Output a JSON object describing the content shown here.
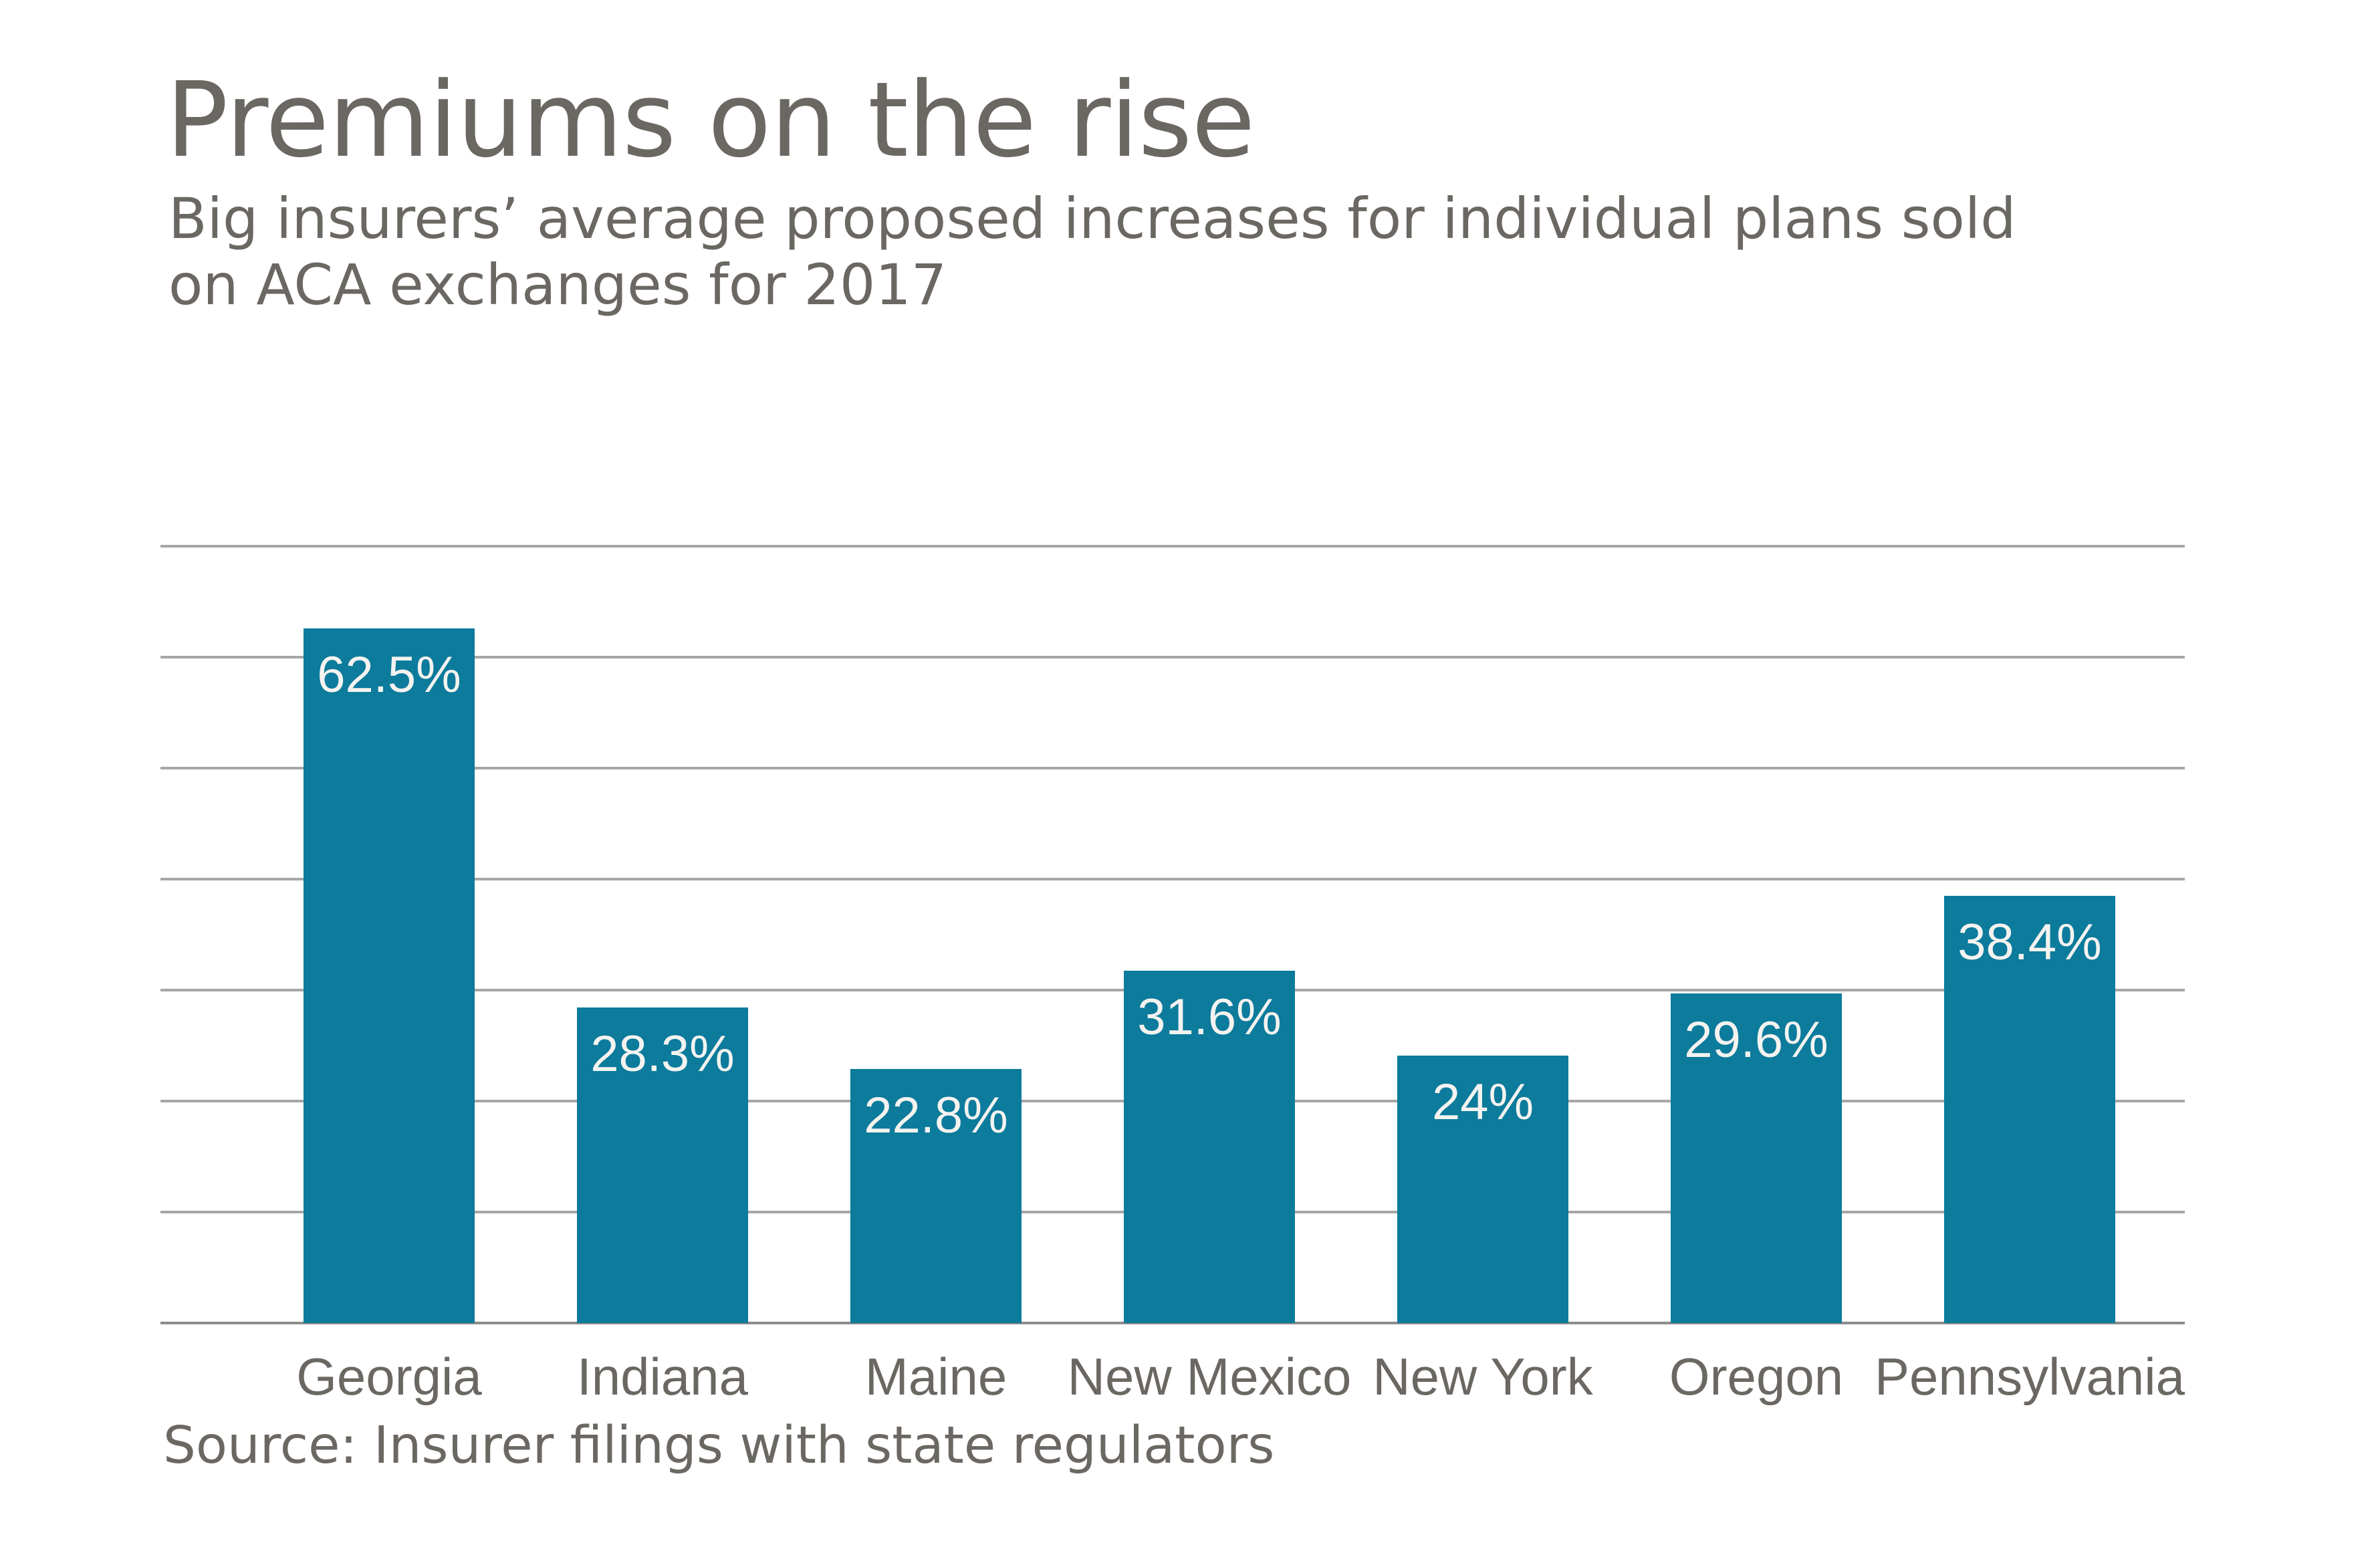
{
  "chart_data": {
    "type": "bar",
    "title": "Premiums on the rise",
    "subtitle_lines": [
      "Big insurers’ average proposed increases for individual plans sold",
      "on ACA exchanges for 2017"
    ],
    "source": "Source: Insurer filings with state regulators",
    "categories": [
      "Georgia",
      "Indiana",
      "Maine",
      "New Mexico",
      "New York",
      "Oregon",
      "Pennsylvania"
    ],
    "values": [
      62.5,
      28.3,
      22.8,
      31.6,
      24,
      29.6,
      38.4
    ],
    "value_labels": [
      "62.5%",
      "28.3%",
      "22.8%",
      "31.6%",
      "24%",
      "29.6%",
      "38.4%"
    ],
    "xlabel": "",
    "ylabel": "",
    "ylim": [
      0,
      70
    ],
    "gridline_step": 10,
    "grid": "on",
    "legend": "none",
    "colors": {
      "bar": "#0c7b9c",
      "bar_label": "#f5f3f0",
      "gridline": "#a6a6a6",
      "axis_line": "#8c8c8c",
      "text": "#6b6762",
      "background": "#ffffff"
    }
  }
}
